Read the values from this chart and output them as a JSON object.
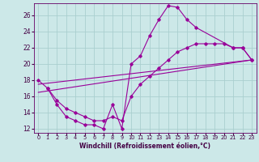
{
  "xlabel": "Windchill (Refroidissement éolien,°C)",
  "xlim": [
    -0.5,
    23.5
  ],
  "ylim": [
    11.5,
    27.5
  ],
  "yticks": [
    12,
    14,
    16,
    18,
    20,
    22,
    24,
    26
  ],
  "xticks": [
    0,
    1,
    2,
    3,
    4,
    5,
    6,
    7,
    8,
    9,
    10,
    11,
    12,
    13,
    14,
    15,
    16,
    17,
    18,
    19,
    20,
    21,
    22,
    23
  ],
  "background_color": "#cce8e8",
  "grid_color": "#aacfcf",
  "line_color": "#990099",
  "curves": [
    {
      "x": [
        0,
        1,
        2,
        3,
        4,
        5,
        6,
        7,
        8,
        9,
        10,
        11,
        12,
        13,
        14,
        15,
        16,
        17,
        21,
        22,
        23
      ],
      "y": [
        18,
        17,
        15,
        13.5,
        13,
        12.5,
        12.5,
        12,
        15,
        12,
        20,
        21,
        23.5,
        25.5,
        27.2,
        27,
        25.5,
        24.5,
        22,
        22,
        20.5
      ]
    },
    {
      "x": [
        0,
        23
      ],
      "y": [
        17.5,
        20.5
      ]
    },
    {
      "x": [
        0,
        23
      ],
      "y": [
        16.5,
        20.5
      ]
    },
    {
      "x": [
        1,
        2,
        3,
        4,
        5,
        6,
        7,
        8,
        9,
        10,
        11,
        12,
        13,
        14,
        15,
        16,
        17,
        18,
        19,
        20,
        21,
        22,
        23
      ],
      "y": [
        17,
        15.5,
        14.5,
        14,
        13.5,
        13,
        13,
        13.5,
        13,
        16,
        17.5,
        18.5,
        19.5,
        20.5,
        21.5,
        22,
        22.5,
        22.5,
        22.5,
        22.5,
        22,
        22,
        20.5
      ]
    }
  ]
}
